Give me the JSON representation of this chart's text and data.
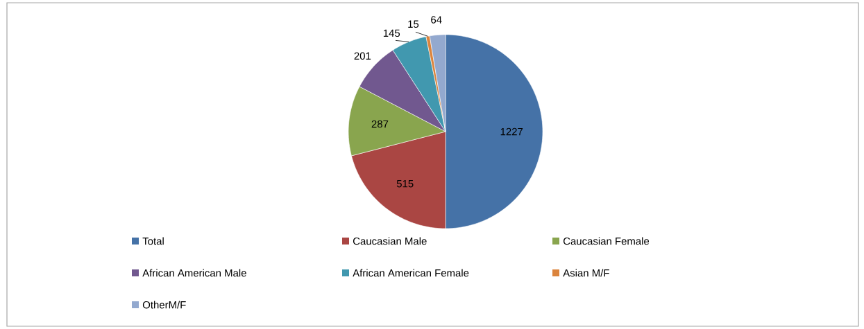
{
  "chart_data": {
    "type": "pie",
    "categories": [
      "Total",
      "Caucasian Male",
      "Caucasian Female",
      "African American Male",
      "African American Female",
      "Asian M/F",
      "OtherM/F"
    ],
    "values": [
      1227,
      515,
      287,
      201,
      145,
      15,
      64
    ],
    "colors": [
      "#4572a7",
      "#aa4643",
      "#89a54e",
      "#71588f",
      "#4198af",
      "#db843d",
      "#93a9cf"
    ],
    "data_labels": true,
    "legend": "bottom"
  }
}
